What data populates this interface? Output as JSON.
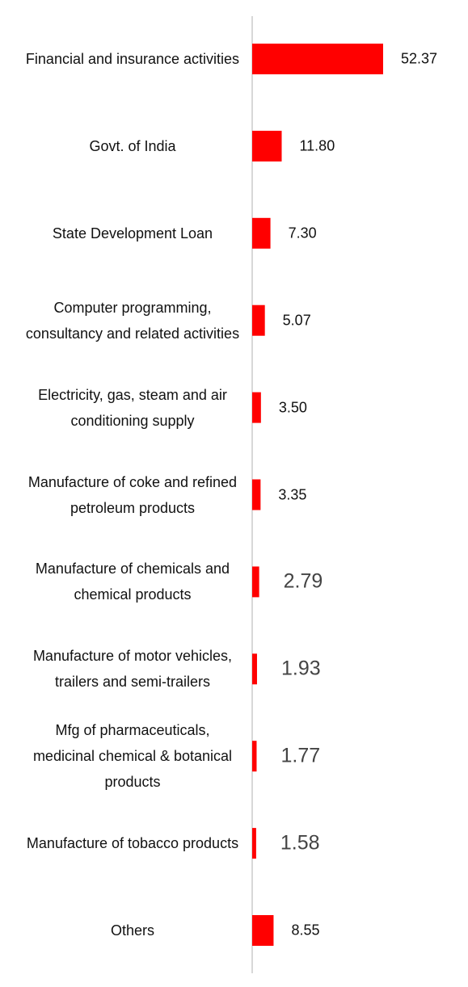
{
  "chart_data": {
    "type": "barh",
    "color": "#ff0000",
    "categories": [
      "Financial and insurance activities",
      "Govt. of India",
      "State Development Loan",
      "Computer programming, consultancy and related activities",
      "Electricity, gas, steam and air conditioning supply",
      "Manufacture of coke and refined petroleum products",
      "Manufacture of chemicals and chemical products",
      "Manufacture of motor vehicles, trailers and semi-trailers",
      "Mfg of pharmaceuticals, medicinal chemical & botanical products",
      "Manufacture of tobacco products",
      "Others"
    ],
    "values": [
      52.37,
      11.8,
      7.3,
      5.07,
      3.5,
      3.35,
      2.79,
      1.93,
      1.77,
      1.58,
      8.55
    ],
    "value_labels": [
      "52.37",
      "11.80",
      "7.30",
      "5.07",
      "3.50",
      "3.35",
      "2.79",
      "1.93",
      "1.77",
      "1.58",
      "8.55"
    ]
  }
}
